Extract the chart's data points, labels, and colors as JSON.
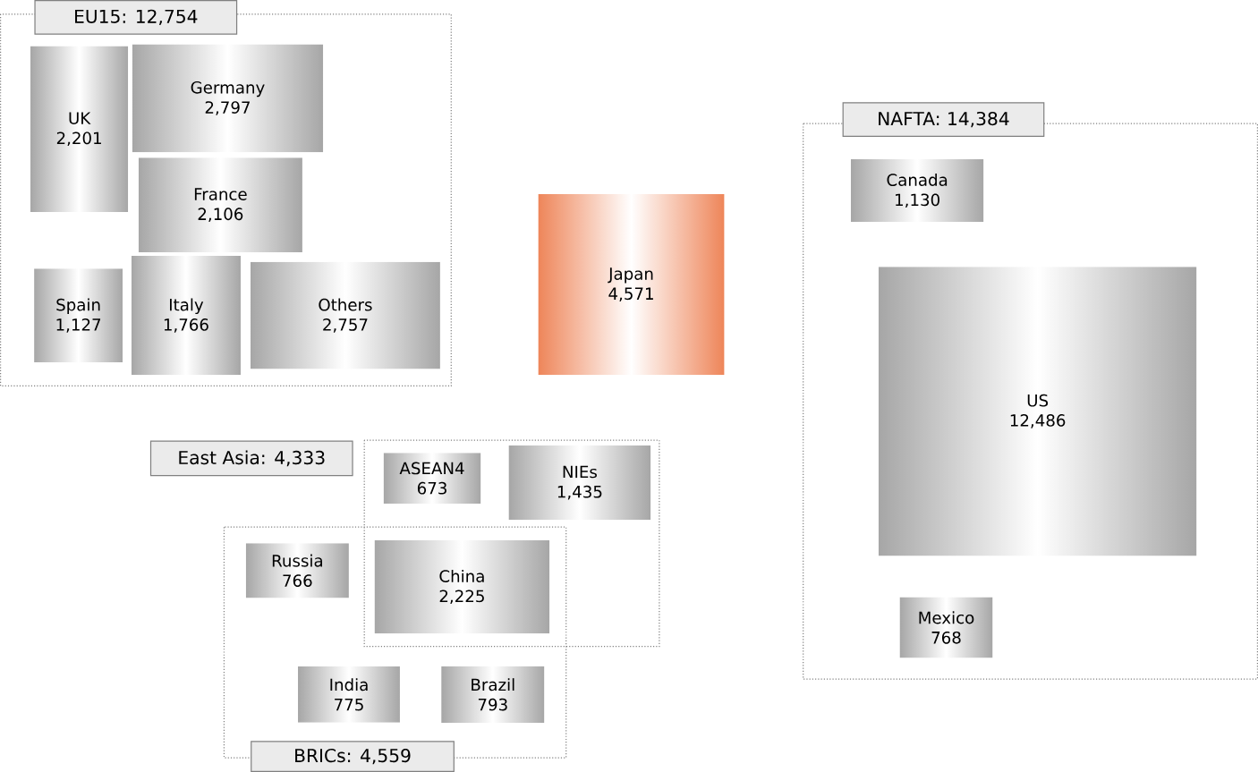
{
  "chart_data": {
    "type": "other",
    "categories": [
      "UK",
      "Germany",
      "France",
      "Spain",
      "Italy",
      "Others",
      "Japan",
      "Canada",
      "US",
      "Mexico",
      "ASEAN4",
      "NIEs",
      "Russia",
      "China",
      "India",
      "Brazil"
    ],
    "values": [
      2201,
      2797,
      2106,
      1127,
      1766,
      2757,
      4571,
      1130,
      12486,
      768,
      673,
      1435,
      766,
      2225,
      775,
      793
    ],
    "colors": [
      "#a6a6a6",
      "#a6a6a6",
      "#a6a6a6",
      "#a6a6a6",
      "#a6a6a6",
      "#a6a6a6",
      "#ee8559",
      "#a6a6a6",
      "#a6a6a6",
      "#a6a6a6",
      "#a6a6a6",
      "#a6a6a6",
      "#a6a6a6",
      "#a6a6a6",
      "#a6a6a6",
      "#a6a6a6"
    ],
    "value_labels": [
      "2,201",
      "2,797",
      "2,106",
      "1,127",
      "1,766",
      "2,757",
      "4,571",
      "1,130",
      "12,486",
      "768",
      "673",
      "1,435",
      "766",
      "2,225",
      "775",
      "793"
    ],
    "annotations": [
      "EU15: 12,754",
      "NAFTA: 14,384",
      "East Asia: 4,333",
      "BRICs: 4,559"
    ]
  }
}
